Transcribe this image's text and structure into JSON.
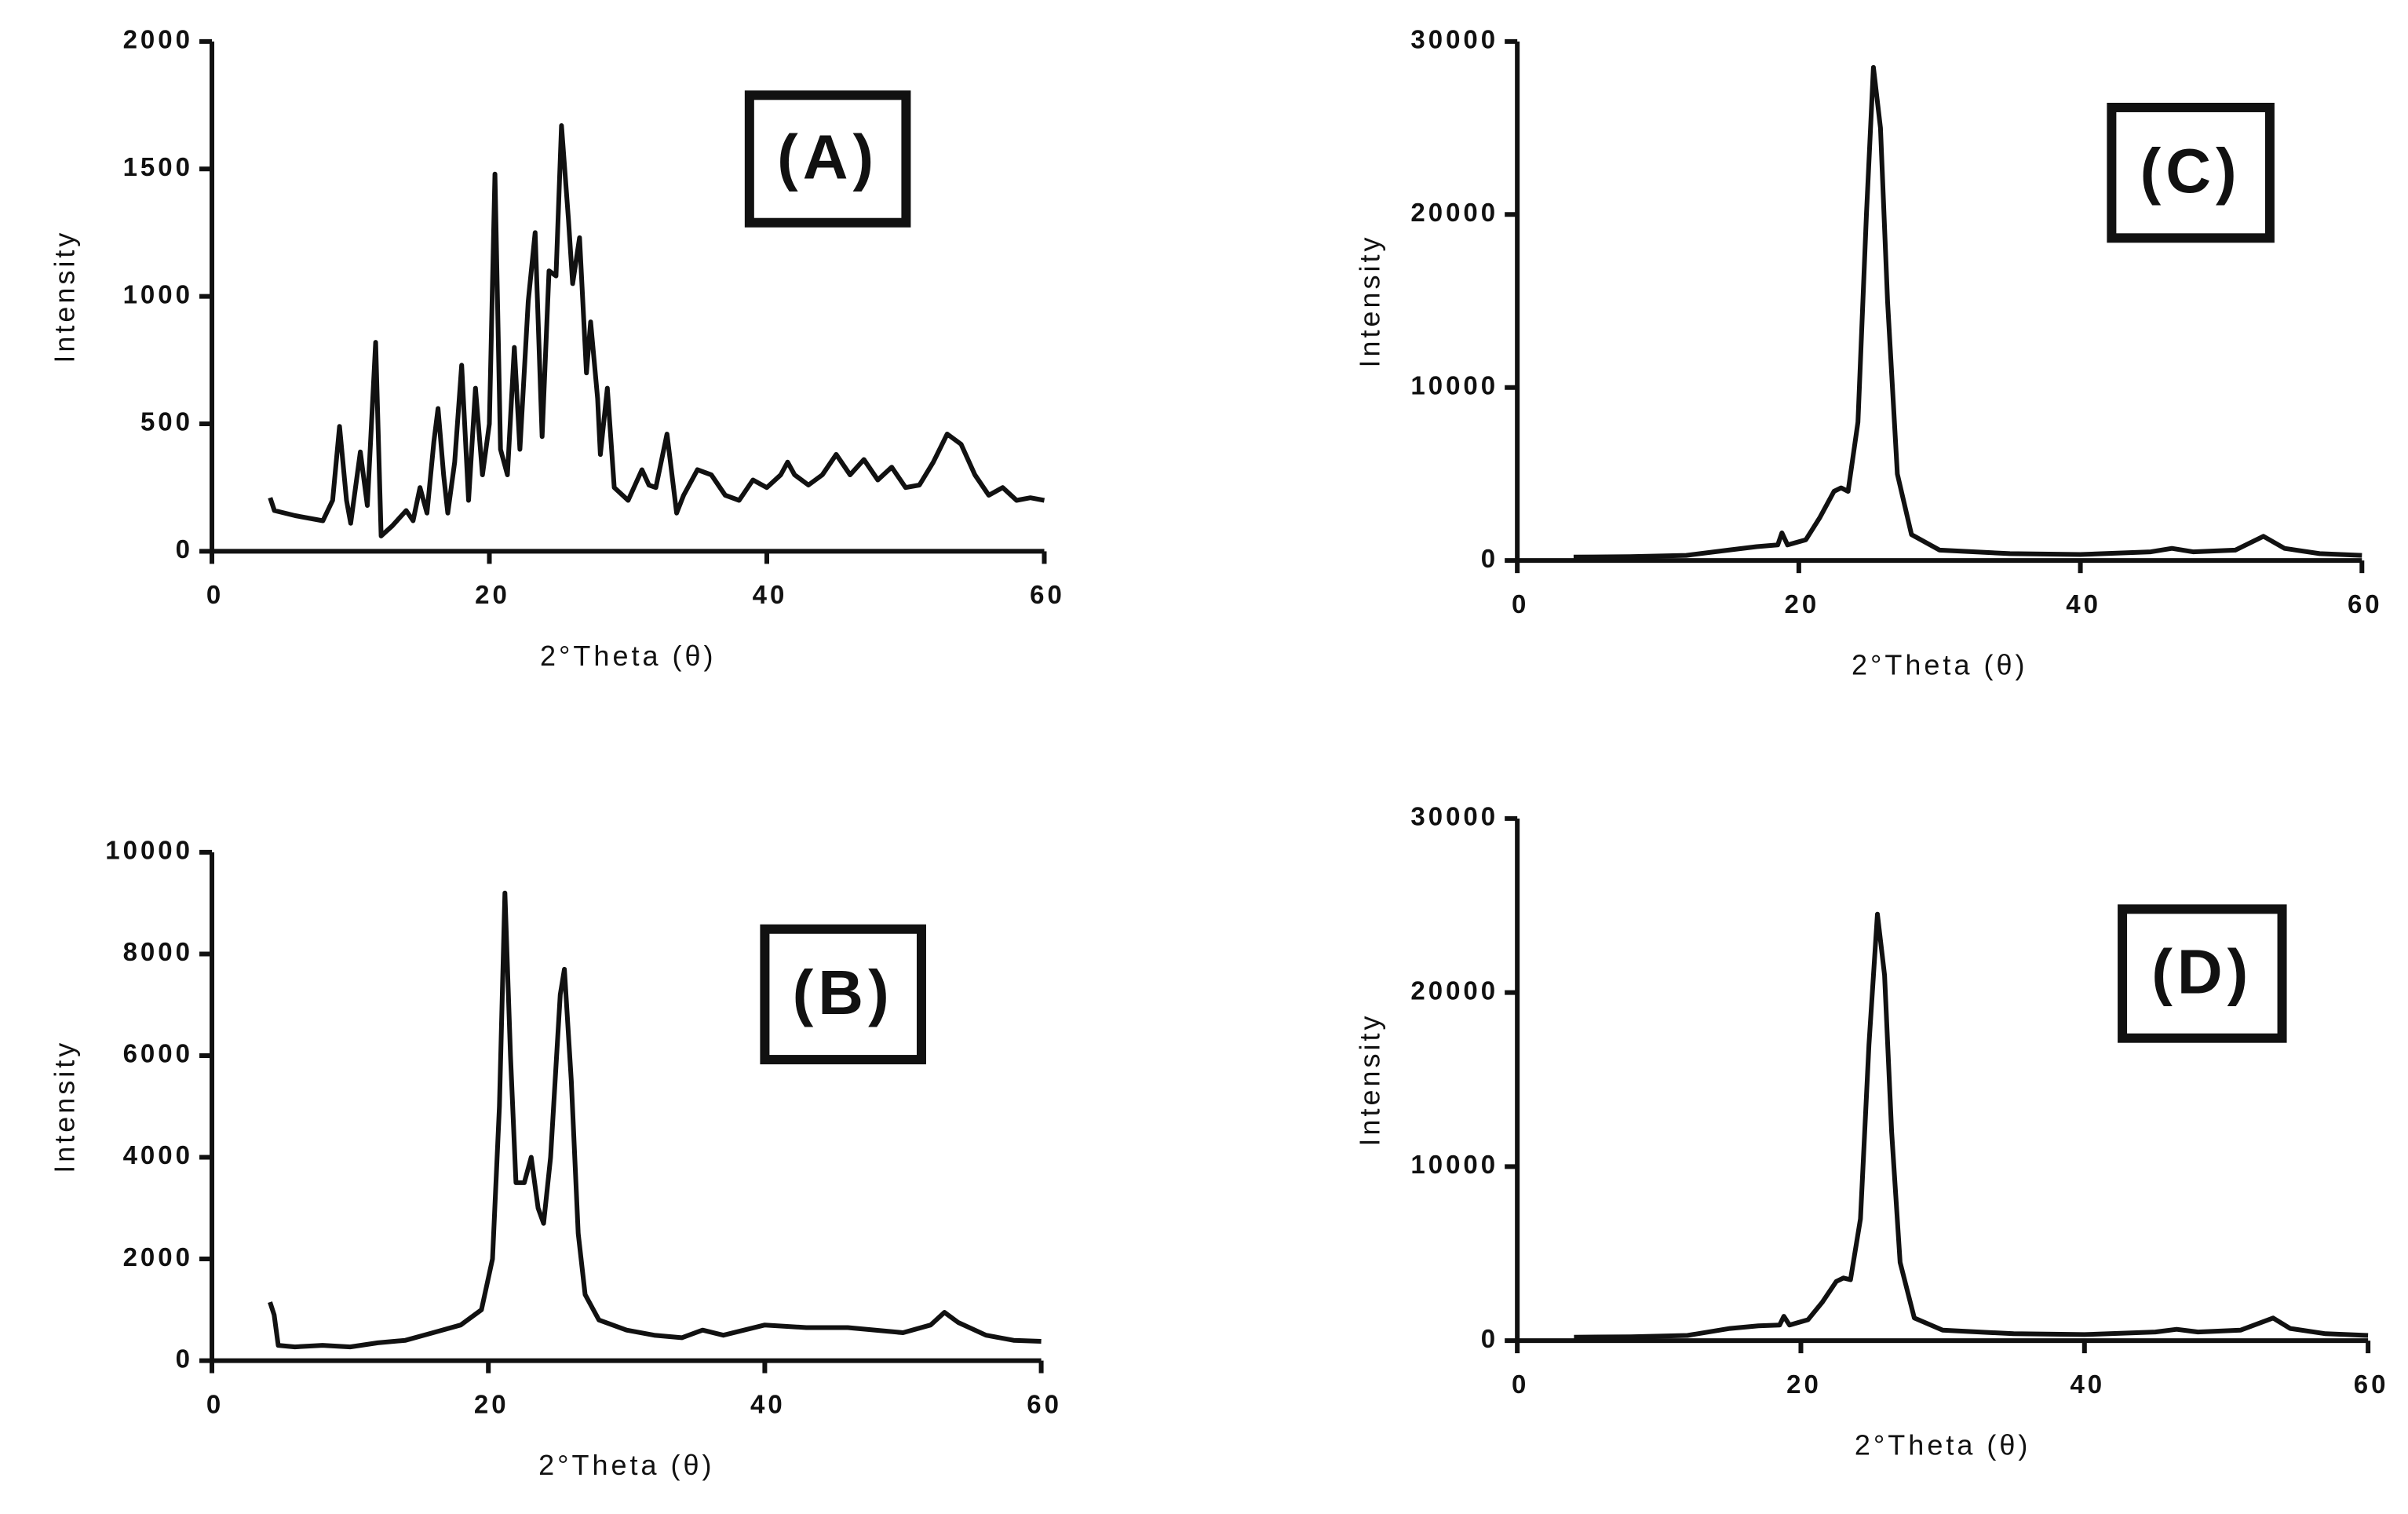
{
  "chart_data": [
    {
      "type": "line",
      "annotation": "(A)",
      "x_label": "2°Theta (θ)",
      "y_label": "Intensity",
      "color": "#111111",
      "xlim": [
        0,
        60
      ],
      "xticks": [
        0,
        20,
        40,
        60
      ],
      "ylim": [
        0,
        2000
      ],
      "yticks": [
        0,
        500,
        1000,
        1500,
        2000
      ],
      "x": [
        4.2,
        4.5,
        6,
        8,
        8.7,
        9.2,
        9.7,
        10,
        10.7,
        11.2,
        11.8,
        12.2,
        13,
        14,
        14.5,
        15,
        15.5,
        16,
        16.3,
        16.7,
        17,
        17.5,
        18,
        18.5,
        19,
        19.5,
        20,
        20.4,
        20.8,
        21.3,
        21.8,
        22.2,
        22.8,
        23.3,
        23.8,
        24.3,
        24.8,
        25.2,
        25.7,
        26,
        26.5,
        27,
        27.3,
        27.8,
        28,
        28.5,
        29,
        30,
        31,
        31.5,
        32,
        32.8,
        33.5,
        34,
        35,
        36,
        37,
        38,
        39,
        40,
        41,
        41.5,
        42,
        43,
        44,
        45,
        46,
        47,
        48,
        49,
        50,
        51,
        52,
        53,
        54,
        55,
        56,
        57,
        58,
        59,
        60
      ],
      "values": [
        210,
        160,
        140,
        120,
        200,
        490,
        200,
        110,
        390,
        180,
        820,
        60,
        100,
        160,
        120,
        250,
        150,
        430,
        560,
        300,
        150,
        350,
        730,
        200,
        640,
        300,
        500,
        1480,
        400,
        300,
        800,
        400,
        980,
        1250,
        450,
        1100,
        1080,
        1670,
        1300,
        1050,
        1230,
        700,
        900,
        600,
        380,
        640,
        250,
        200,
        320,
        260,
        250,
        460,
        150,
        220,
        320,
        300,
        220,
        200,
        280,
        250,
        300,
        350,
        300,
        260,
        300,
        380,
        300,
        360,
        280,
        330,
        250,
        260,
        350,
        460,
        420,
        300,
        220,
        250,
        200,
        210,
        200
      ]
    },
    {
      "type": "line",
      "annotation": "(B)",
      "x_label": "2°Theta (θ)",
      "y_label": "Intensity",
      "color": "#111111",
      "xlim": [
        0,
        60
      ],
      "xticks": [
        0,
        20,
        40,
        60
      ],
      "ylim": [
        0,
        10000
      ],
      "yticks": [
        0,
        2000,
        4000,
        6000,
        8000,
        10000
      ],
      "x": [
        4.2,
        4.5,
        4.8,
        6,
        8,
        10,
        12,
        14,
        16,
        18,
        19.5,
        20.3,
        20.8,
        21.2,
        21.6,
        22,
        22.6,
        23.1,
        23.6,
        24,
        24.5,
        25.2,
        25.5,
        26,
        26.5,
        27,
        28,
        30,
        32,
        34,
        35.5,
        37,
        40,
        43,
        46,
        50,
        52,
        53,
        54,
        56,
        58,
        60
      ],
      "values": [
        1150,
        900,
        300,
        270,
        300,
        270,
        350,
        400,
        550,
        700,
        1000,
        2000,
        5000,
        9200,
        6000,
        3500,
        3500,
        4000,
        3000,
        2700,
        4000,
        7200,
        7700,
        5500,
        2500,
        1300,
        800,
        600,
        500,
        450,
        600,
        500,
        700,
        650,
        650,
        550,
        700,
        950,
        750,
        500,
        400,
        380
      ]
    },
    {
      "type": "line",
      "annotation": "(C)",
      "x_label": "2°Theta (θ)",
      "y_label": "Intensity",
      "color": "#111111",
      "xlim": [
        0,
        60
      ],
      "xticks": [
        0,
        20,
        40,
        60
      ],
      "ylim": [
        0,
        30000
      ],
      "yticks": [
        0,
        10000,
        20000,
        30000
      ],
      "x": [
        4,
        8,
        12,
        15,
        17,
        18.5,
        18.8,
        19.2,
        20.5,
        21.5,
        22.5,
        23,
        23.5,
        24.2,
        24.8,
        25.3,
        25.8,
        26.3,
        27,
        28,
        30,
        35,
        40,
        45,
        46.5,
        48,
        51,
        53,
        54.5,
        57,
        60
      ],
      "values": [
        200,
        220,
        300,
        600,
        800,
        900,
        1600,
        900,
        1200,
        2500,
        4000,
        4200,
        4000,
        8000,
        20000,
        28500,
        25000,
        15000,
        5000,
        1500,
        600,
        400,
        350,
        500,
        700,
        500,
        600,
        1400,
        700,
        400,
        300
      ]
    },
    {
      "type": "line",
      "annotation": "(D)",
      "x_label": "2°Theta (θ)",
      "y_label": "Intensity",
      "color": "#111111",
      "xlim": [
        0,
        60
      ],
      "xticks": [
        0,
        20,
        40,
        60
      ],
      "ylim": [
        0,
        30000
      ],
      "yticks": [
        0,
        10000,
        20000,
        30000
      ],
      "x": [
        4,
        8,
        12,
        15,
        17,
        18.5,
        18.8,
        19.2,
        20.5,
        21.5,
        22.5,
        23,
        23.5,
        24.2,
        24.8,
        25.4,
        25.9,
        26.4,
        27,
        28,
        30,
        35,
        40,
        45,
        46.5,
        48,
        51,
        53.3,
        54.5,
        57,
        60
      ],
      "values": [
        200,
        220,
        300,
        700,
        850,
        900,
        1400,
        900,
        1200,
        2200,
        3400,
        3600,
        3500,
        7000,
        17000,
        24500,
        21000,
        12000,
        4500,
        1300,
        600,
        400,
        350,
        500,
        650,
        500,
        600,
        1300,
        700,
        400,
        300
      ]
    }
  ]
}
